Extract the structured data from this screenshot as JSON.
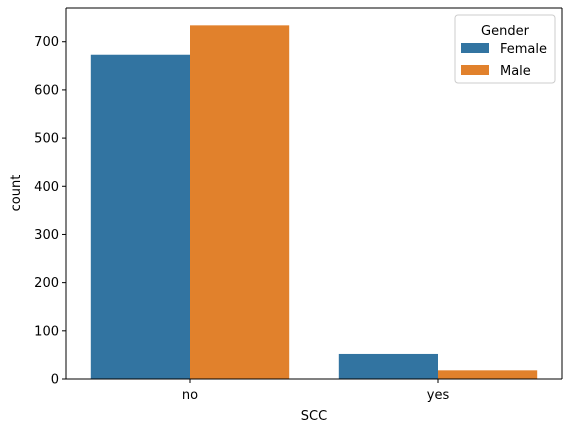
{
  "chart_data": {
    "type": "bar",
    "title": "",
    "xlabel": "SCC",
    "ylabel": "count",
    "categories": [
      "no",
      "yes"
    ],
    "series": [
      {
        "name": "Female",
        "values": [
          673,
          52
        ],
        "color": "#3274a1"
      },
      {
        "name": "Male",
        "values": [
          734,
          18
        ],
        "color": "#e1812c"
      }
    ],
    "ylim": [
      0,
      770
    ],
    "yticks": [
      0,
      100,
      200,
      300,
      400,
      500,
      600,
      700
    ],
    "grid": false,
    "legend": {
      "title": "Gender",
      "placement": "top-right"
    }
  }
}
